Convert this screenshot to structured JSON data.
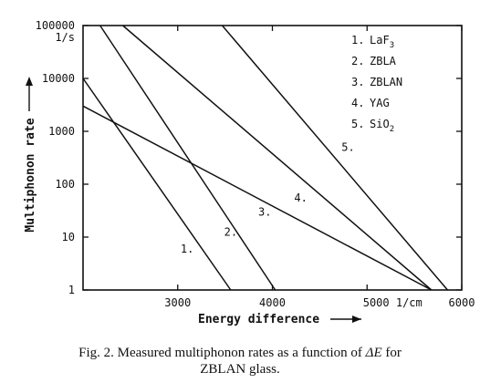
{
  "chart_data": {
    "type": "line",
    "x_scale": "linear",
    "y_scale": "log",
    "xlim": [
      2000,
      6000
    ],
    "ylim": [
      1,
      100000
    ],
    "x_ticks": [
      3000,
      4000,
      5000,
      6000
    ],
    "x_tick_labels": [
      "3000",
      "4000",
      "5000 1/cm",
      "6000"
    ],
    "y_ticks": [
      1,
      10,
      100,
      1000,
      10000,
      100000
    ],
    "y_tick_labels": [
      "1",
      "10",
      "100",
      "1000",
      "10000",
      "100000"
    ],
    "y_unit_label": "1/s",
    "xlabel": "Energy difference",
    "ylabel": "Multiphonon rate",
    "grid": false,
    "legend_position": "top-right",
    "series": [
      {
        "name": "LaF3",
        "number_label": "1.",
        "points": [
          [
            2000,
            10000
          ],
          [
            3560,
            1
          ]
        ]
      },
      {
        "name": "ZBLA",
        "number_label": "2.",
        "points": [
          [
            2180,
            100000
          ],
          [
            4030,
            1
          ]
        ]
      },
      {
        "name": "ZBLAN",
        "number_label": "3.",
        "points": [
          [
            2000,
            3000
          ],
          [
            5680,
            1
          ]
        ]
      },
      {
        "name": "YAG",
        "number_label": "4.",
        "points": [
          [
            2420,
            100000
          ],
          [
            5680,
            1
          ]
        ]
      },
      {
        "name": "SiO2",
        "number_label": "5.",
        "points": [
          [
            3470,
            100000
          ],
          [
            5850,
            1
          ]
        ]
      }
    ]
  },
  "legend": {
    "items": [
      {
        "num": "1.",
        "name": "LaF",
        "sub": "3"
      },
      {
        "num": "2.",
        "name": "ZBLA",
        "sub": ""
      },
      {
        "num": "3.",
        "name": "ZBLAN",
        "sub": ""
      },
      {
        "num": "4.",
        "name": "YAG",
        "sub": ""
      },
      {
        "num": "5.",
        "name": "SiO",
        "sub": "2"
      }
    ]
  },
  "caption": {
    "prefix": "Fig. 2. Measured multiphonon rates as a function of",
    "symbol": "ΔE",
    "suffix": "for",
    "line2": "ZBLAN glass."
  }
}
